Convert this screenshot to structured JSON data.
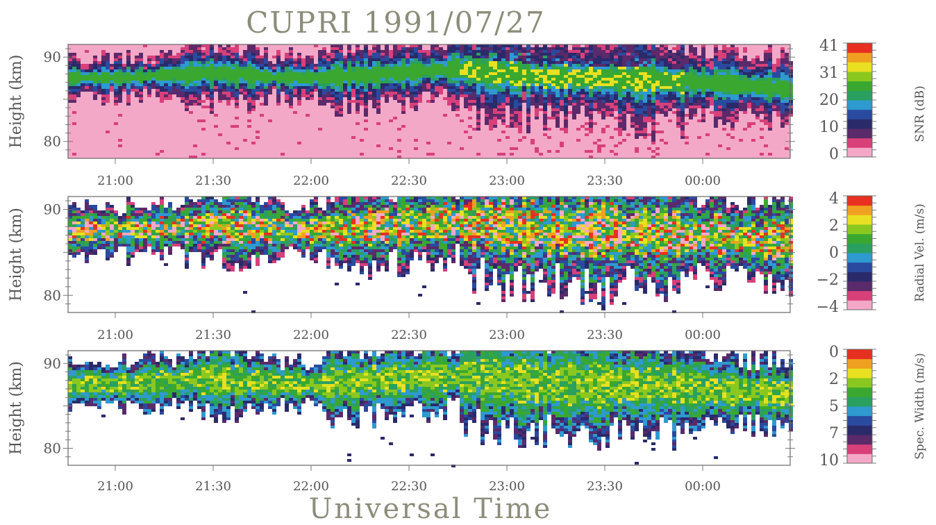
{
  "title": "CUPRI   1991/07/27",
  "xlabel": "Universal Time",
  "chart_data": [
    {
      "type": "heatmap",
      "panel": "snr",
      "ylabel": "Height (km)",
      "yticks": [
        "80",
        "90"
      ],
      "ylim": [
        78,
        91.5
      ],
      "xticks": [
        "21:00",
        "21:30",
        "22:00",
        "22:30",
        "23:00",
        "23:30",
        "00:00"
      ],
      "colorbar": {
        "label": "SNR (dB)",
        "ticks": [
          "41",
          "31",
          "20",
          "10",
          "0"
        ]
      },
      "background": "#f4a8c8",
      "layer_center_km": [
        {
          "t": "20:42",
          "h": 87.6
        },
        {
          "t": "21:00",
          "h": 87.5
        },
        {
          "t": "21:15",
          "h": 87.8
        },
        {
          "t": "21:30",
          "h": 88.2
        },
        {
          "t": "21:45",
          "h": 87.7
        },
        {
          "t": "22:00",
          "h": 87.5
        },
        {
          "t": "22:15",
          "h": 87.8
        },
        {
          "t": "22:30",
          "h": 88.2
        },
        {
          "t": "22:45",
          "h": 88.6
        },
        {
          "t": "23:00",
          "h": 88.0
        },
        {
          "t": "23:15",
          "h": 87.6
        },
        {
          "t": "23:30",
          "h": 87.5
        },
        {
          "t": "23:45",
          "h": 87.3
        },
        {
          "t": "00:00",
          "h": 87.0
        },
        {
          "t": "00:15",
          "h": 86.6
        },
        {
          "t": "00:25",
          "h": 86.3
        }
      ]
    },
    {
      "type": "heatmap",
      "panel": "radial_velocity",
      "ylabel": "Height (km)",
      "yticks": [
        "80",
        "90"
      ],
      "ylim": [
        78,
        91.5
      ],
      "xticks": [
        "21:00",
        "21:30",
        "22:00",
        "22:30",
        "23:00",
        "23:30",
        "00:00"
      ],
      "colorbar": {
        "label": "Radial Vel. (m/s)",
        "ticks": [
          "4",
          "2",
          "0",
          "−2",
          "−4"
        ]
      },
      "background": "#ffffff"
    },
    {
      "type": "heatmap",
      "panel": "spectral_width",
      "ylabel": "Height (km)",
      "yticks": [
        "80",
        "90"
      ],
      "ylim": [
        78,
        91.5
      ],
      "xticks": [
        "21:00",
        "21:30",
        "22:00",
        "22:30",
        "23:00",
        "23:30",
        "00:00"
      ],
      "colorbar": {
        "label": "Spec. Width (m/s)",
        "ticks": [
          "0",
          "2",
          "5",
          "7",
          "10"
        ]
      },
      "background": "#ffffff"
    }
  ],
  "colors": {
    "palette": [
      "#f4a8c8",
      "#d8407a",
      "#5a2a6a",
      "#2a2a6a",
      "#2a4aa0",
      "#2e9ad0",
      "#2aa060",
      "#3aa830",
      "#8ac820",
      "#e8e020",
      "#f0a020",
      "#e83020"
    ],
    "axis": "#555555",
    "title": "#8c8c7a"
  }
}
